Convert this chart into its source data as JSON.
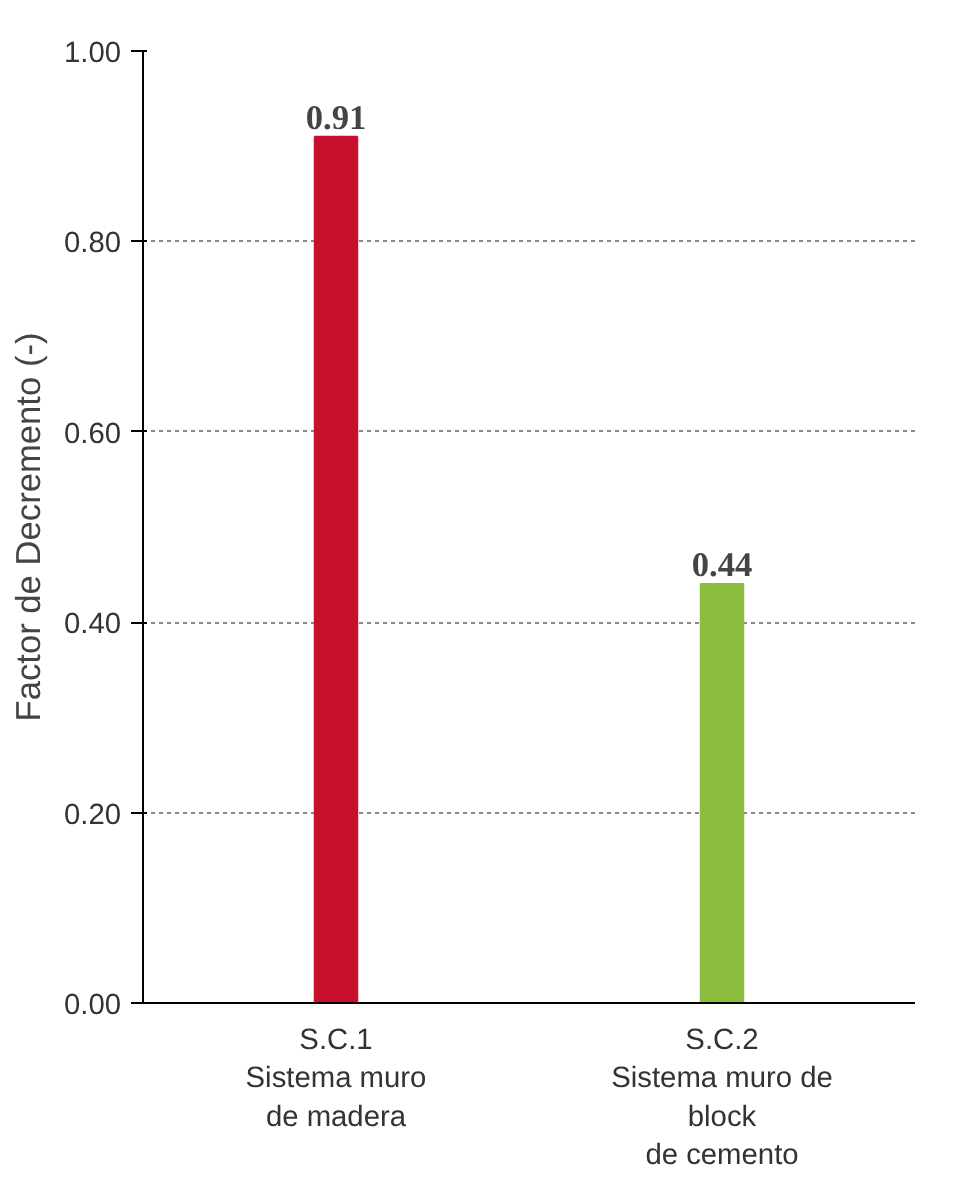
{
  "chart_data": {
    "type": "bar",
    "ylabel": "Factor de Decremento (-)",
    "categories": [
      "S.C.1\nSistema muro\nde madera",
      "S.C.2\nSistema muro de\nblock\nde cemento"
    ],
    "values": [
      0.91,
      0.44
    ],
    "colors": [
      "#c8102e",
      "#8cbd3f"
    ],
    "ylim": [
      0,
      1
    ],
    "yticks": [
      {
        "value": 0,
        "label": "0.00"
      },
      {
        "value": 0.2,
        "label": "0.20"
      },
      {
        "value": 0.4,
        "label": "0.40"
      },
      {
        "value": 0.6,
        "label": "0.60"
      },
      {
        "value": 0.8,
        "label": "0.80"
      },
      {
        "value": 1,
        "label": "1.00"
      }
    ],
    "grid": "y",
    "data_labels": true
  }
}
